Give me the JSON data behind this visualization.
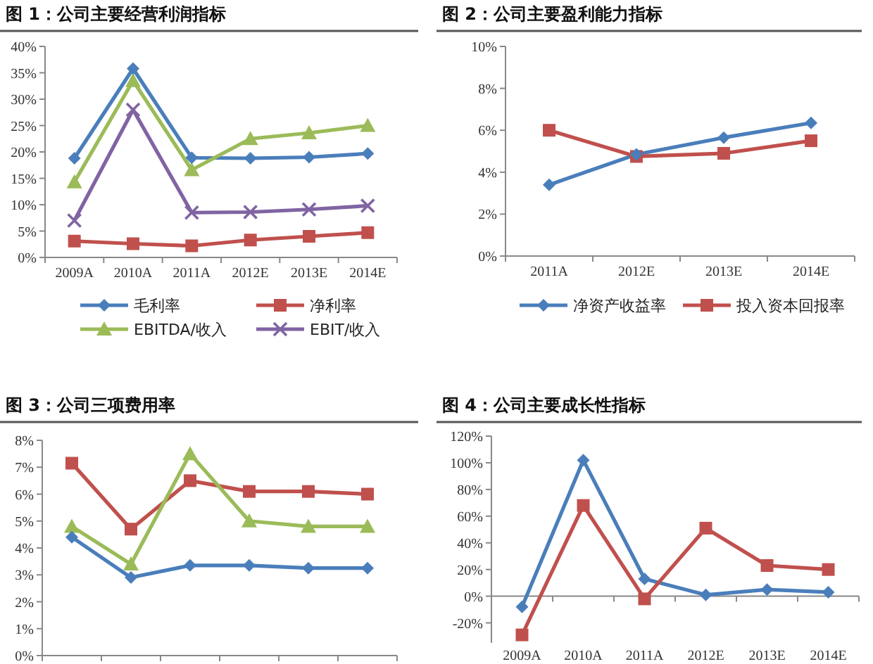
{
  "chart_data": [
    {
      "type": "line",
      "title": "图 1：公司主要经营利润指标",
      "categories": [
        "2009A",
        "2010A",
        "2011A",
        "2012E",
        "2013E",
        "2014E"
      ],
      "ylim": [
        0,
        40
      ],
      "yticks": [
        {
          "value": 0,
          "label": "0%"
        },
        {
          "value": 5,
          "label": "5%"
        },
        {
          "value": 10,
          "label": "10%"
        },
        {
          "value": 15,
          "label": "15%"
        },
        {
          "value": 20,
          "label": "20%"
        },
        {
          "value": 25,
          "label": "25%"
        },
        {
          "value": 30,
          "label": "30%"
        },
        {
          "value": 35,
          "label": "35%"
        },
        {
          "value": 40,
          "label": "40%"
        }
      ],
      "legend": "bottom",
      "series": [
        {
          "name": "毛利率",
          "color": "#4a7ebb",
          "marker": "diamond",
          "values": [
            18.8,
            35.8,
            18.9,
            18.8,
            19.0,
            19.7
          ]
        },
        {
          "name": "净利率",
          "color": "#c0504d",
          "marker": "square",
          "values": [
            3.1,
            2.6,
            2.2,
            3.3,
            4.0,
            4.7
          ]
        },
        {
          "name": "EBITDA/收入",
          "color": "#9bbb59",
          "marker": "triangle",
          "values": [
            14.3,
            33.5,
            16.6,
            22.5,
            23.6,
            25.0
          ]
        },
        {
          "name": "EBIT/收入",
          "color": "#8064a2",
          "marker": "cross",
          "values": [
            7.0,
            28.0,
            8.5,
            8.6,
            9.1,
            9.8
          ]
        }
      ]
    },
    {
      "type": "line",
      "title": "图 2：公司主要盈利能力指标",
      "categories": [
        "2011A",
        "2012E",
        "2013E",
        "2014E"
      ],
      "ylim": [
        0,
        10
      ],
      "yticks": [
        {
          "value": 0,
          "label": "0%"
        },
        {
          "value": 2,
          "label": "2%"
        },
        {
          "value": 4,
          "label": "4%"
        },
        {
          "value": 6,
          "label": "6%"
        },
        {
          "value": 8,
          "label": "8%"
        },
        {
          "value": 10,
          "label": "10%"
        }
      ],
      "legend": "bottom",
      "series": [
        {
          "name": "净资产收益率",
          "color": "#4a7ebb",
          "marker": "diamond",
          "values": [
            3.4,
            4.85,
            5.65,
            6.35
          ]
        },
        {
          "name": "投入资本回报率",
          "color": "#c0504d",
          "marker": "square",
          "values": [
            6.0,
            4.75,
            4.9,
            5.5
          ]
        }
      ]
    },
    {
      "type": "line",
      "title": "图 3：公司三项费用率",
      "categories": [
        null,
        null,
        null,
        null,
        null,
        null
      ],
      "tick_labels": "y",
      "ylim": [
        0,
        8
      ],
      "yticks": [
        {
          "value": 0,
          "label": "0%"
        },
        {
          "value": 1,
          "label": "1%"
        },
        {
          "value": 2,
          "label": "2%"
        },
        {
          "value": 3,
          "label": "3%"
        },
        {
          "value": 4,
          "label": "4%"
        },
        {
          "value": 5,
          "label": "5%"
        },
        {
          "value": 6,
          "label": "6%"
        },
        {
          "value": 7,
          "label": "7%"
        },
        {
          "value": 8,
          "label": "8%"
        }
      ],
      "series": [
        {
          "color": "#4a7ebb",
          "marker": "diamond",
          "values": [
            4.4,
            2.9,
            3.35,
            3.35,
            3.25,
            3.25
          ]
        },
        {
          "color": "#c0504d",
          "marker": "square",
          "values": [
            7.15,
            4.7,
            6.5,
            6.1,
            6.1,
            6.0
          ]
        },
        {
          "color": "#9bbb59",
          "marker": "triangle",
          "values": [
            4.8,
            3.4,
            7.5,
            5.0,
            4.8,
            4.8
          ]
        }
      ]
    },
    {
      "type": "line",
      "title": "图 4：公司主要成长性指标",
      "categories": [
        "2009A",
        "2010A",
        "2011A",
        "2012E",
        "2013E",
        "2014E"
      ],
      "ylim": [
        -35,
        120
      ],
      "yticks": [
        {
          "value": -20,
          "label": "-20%"
        },
        {
          "value": 0,
          "label": "0%"
        },
        {
          "value": 20,
          "label": "20%"
        },
        {
          "value": 40,
          "label": "40%"
        },
        {
          "value": 60,
          "label": "60%"
        },
        {
          "value": 80,
          "label": "80%"
        },
        {
          "value": 100,
          "label": "100%"
        },
        {
          "value": 120,
          "label": "120%"
        }
      ],
      "series": [
        {
          "color": "#4a7ebb",
          "marker": "diamond",
          "values": [
            -8,
            102,
            13,
            1,
            5,
            3
          ]
        },
        {
          "color": "#c0504d",
          "marker": "square",
          "values": [
            -29,
            68,
            -2,
            51,
            23,
            20
          ]
        }
      ]
    }
  ]
}
